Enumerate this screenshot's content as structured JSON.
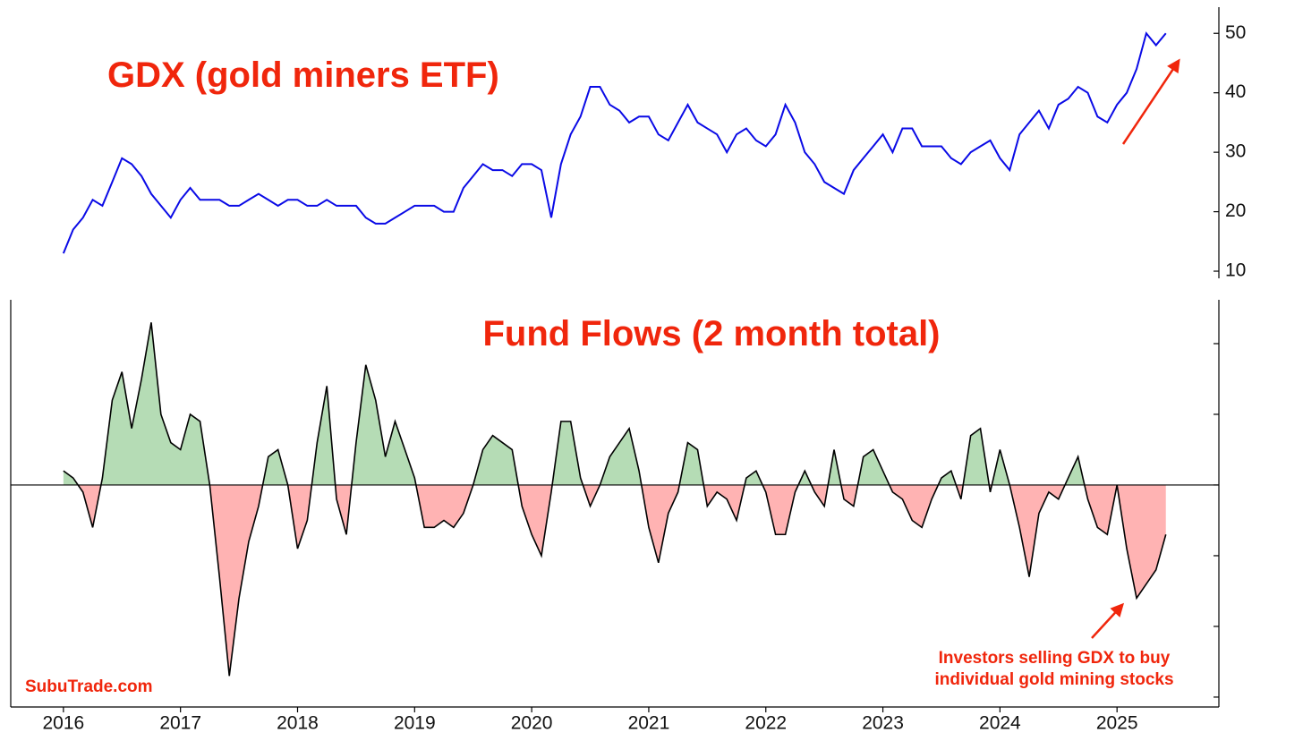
{
  "chart_data": [
    {
      "type": "line",
      "title": "GDX (gold miners ETF)",
      "color": "#0a0ae6",
      "axis_side": "right",
      "xlim": [
        2015.55,
        2025.87
      ],
      "ylim": [
        8.8,
        54.4
      ],
      "yticks": [
        10,
        20,
        30,
        40,
        50
      ],
      "x": [
        2016,
        2016.083,
        2016.167,
        2016.25,
        2016.333,
        2016.417,
        2016.5,
        2016.583,
        2016.667,
        2016.75,
        2016.833,
        2016.917,
        2017,
        2017.083,
        2017.167,
        2017.25,
        2017.333,
        2017.417,
        2017.5,
        2017.583,
        2017.667,
        2017.75,
        2017.833,
        2017.917,
        2018,
        2018.083,
        2018.167,
        2018.25,
        2018.333,
        2018.417,
        2018.5,
        2018.583,
        2018.667,
        2018.75,
        2018.833,
        2018.917,
        2019,
        2019.083,
        2019.167,
        2019.25,
        2019.333,
        2019.417,
        2019.5,
        2019.583,
        2019.667,
        2019.75,
        2019.833,
        2019.917,
        2020,
        2020.083,
        2020.167,
        2020.25,
        2020.333,
        2020.417,
        2020.5,
        2020.583,
        2020.667,
        2020.75,
        2020.833,
        2020.917,
        2021,
        2021.083,
        2021.167,
        2021.25,
        2021.333,
        2021.417,
        2021.5,
        2021.583,
        2021.667,
        2021.75,
        2021.833,
        2021.917,
        2022,
        2022.083,
        2022.167,
        2022.25,
        2022.333,
        2022.417,
        2022.5,
        2022.583,
        2022.667,
        2022.75,
        2022.833,
        2022.917,
        2023,
        2023.083,
        2023.167,
        2023.25,
        2023.333,
        2023.417,
        2023.5,
        2023.583,
        2023.667,
        2023.75,
        2023.833,
        2023.917,
        2024,
        2024.083,
        2024.167,
        2024.25,
        2024.333,
        2024.417,
        2024.5,
        2024.583,
        2024.667,
        2024.75,
        2024.833,
        2024.917,
        2025,
        2025.083,
        2025.167,
        2025.25,
        2025.333,
        2025.417
      ],
      "values": [
        13,
        17,
        19,
        22,
        21,
        25,
        29,
        28,
        26,
        23,
        21,
        19,
        22,
        24,
        22,
        22,
        22,
        21,
        21,
        22,
        23,
        22,
        21,
        22,
        22,
        21,
        21,
        22,
        21,
        21,
        21,
        19,
        18,
        18,
        19,
        20,
        21,
        21,
        21,
        20,
        20,
        24,
        26,
        28,
        27,
        27,
        26,
        28,
        28,
        27,
        19,
        28,
        33,
        36,
        41,
        41,
        38,
        37,
        35,
        36,
        36,
        33,
        32,
        35,
        38,
        35,
        34,
        33,
        30,
        33,
        34,
        32,
        31,
        33,
        38,
        35,
        30,
        28,
        25,
        24,
        23,
        27,
        29,
        31,
        33,
        30,
        34,
        34,
        31,
        31,
        31,
        29,
        28,
        30,
        31,
        32,
        29,
        27,
        33,
        35,
        37,
        34,
        38,
        39,
        41,
        40,
        36,
        35,
        38,
        40,
        44,
        50,
        48,
        50
      ]
    },
    {
      "type": "area",
      "title": "Fund Flows (2 month total)",
      "color": "#000000",
      "positive_color": "#b5dcb5",
      "negative_color": "#ffb3b3",
      "zero_line": true,
      "tick_labels": false,
      "xlim": [
        2015.55,
        2025.87
      ],
      "ylim": [
        -3.14,
        2.62
      ],
      "yticks": [
        -3,
        -2,
        -1,
        0,
        1,
        2
      ],
      "xticks": [
        2016,
        2017,
        2018,
        2019,
        2020,
        2021,
        2022,
        2023,
        2024,
        2025
      ],
      "x": [
        2016,
        2016.083,
        2016.167,
        2016.25,
        2016.333,
        2016.417,
        2016.5,
        2016.583,
        2016.667,
        2016.75,
        2016.833,
        2016.917,
        2017,
        2017.083,
        2017.167,
        2017.25,
        2017.333,
        2017.417,
        2017.5,
        2017.583,
        2017.667,
        2017.75,
        2017.833,
        2017.917,
        2018,
        2018.083,
        2018.167,
        2018.25,
        2018.333,
        2018.417,
        2018.5,
        2018.583,
        2018.667,
        2018.75,
        2018.833,
        2018.917,
        2019,
        2019.083,
        2019.167,
        2019.25,
        2019.333,
        2019.417,
        2019.5,
        2019.583,
        2019.667,
        2019.75,
        2019.833,
        2019.917,
        2020,
        2020.083,
        2020.167,
        2020.25,
        2020.333,
        2020.417,
        2020.5,
        2020.583,
        2020.667,
        2020.75,
        2020.833,
        2020.917,
        2021,
        2021.083,
        2021.167,
        2021.25,
        2021.333,
        2021.417,
        2021.5,
        2021.583,
        2021.667,
        2021.75,
        2021.833,
        2021.917,
        2022,
        2022.083,
        2022.167,
        2022.25,
        2022.333,
        2022.417,
        2022.5,
        2022.583,
        2022.667,
        2022.75,
        2022.833,
        2022.917,
        2023,
        2023.083,
        2023.167,
        2023.25,
        2023.333,
        2023.417,
        2023.5,
        2023.583,
        2023.667,
        2023.75,
        2023.833,
        2023.917,
        2024,
        2024.083,
        2024.167,
        2024.25,
        2024.333,
        2024.417,
        2024.5,
        2024.583,
        2024.667,
        2024.75,
        2024.833,
        2024.917,
        2025,
        2025.083,
        2025.167,
        2025.25,
        2025.333,
        2025.417
      ],
      "values": [
        0.2,
        0.1,
        -0.1,
        -0.6,
        0.1,
        1.2,
        1.6,
        0.8,
        1.5,
        2.3,
        1.0,
        0.6,
        0.5,
        1.0,
        0.9,
        0.0,
        -1.3,
        -2.7,
        -1.6,
        -0.8,
        -0.3,
        0.4,
        0.5,
        0.0,
        -0.9,
        -0.5,
        0.6,
        1.4,
        -0.2,
        -0.7,
        0.6,
        1.7,
        1.2,
        0.4,
        0.9,
        0.5,
        0.1,
        -0.6,
        -0.6,
        -0.5,
        -0.6,
        -0.4,
        0.0,
        0.5,
        0.7,
        0.6,
        0.5,
        -0.3,
        -0.7,
        -1.0,
        -0.1,
        0.9,
        0.9,
        0.1,
        -0.3,
        0.0,
        0.4,
        0.6,
        0.8,
        0.2,
        -0.6,
        -1.1,
        -0.4,
        -0.1,
        0.6,
        0.5,
        -0.3,
        -0.1,
        -0.2,
        -0.5,
        0.1,
        0.2,
        -0.1,
        -0.7,
        -0.7,
        -0.1,
        0.2,
        -0.1,
        -0.3,
        0.5,
        -0.2,
        -0.3,
        0.4,
        0.5,
        0.2,
        -0.1,
        -0.2,
        -0.5,
        -0.6,
        -0.2,
        0.1,
        0.2,
        -0.2,
        0.7,
        0.8,
        -0.1,
        0.5,
        0.0,
        -0.6,
        -1.3,
        -0.4,
        -0.1,
        -0.2,
        0.1,
        0.4,
        -0.2,
        -0.6,
        -0.7,
        0.0,
        -0.9,
        -1.6,
        -1.4,
        -1.2,
        -0.7
      ],
      "annotation": [
        "Investors selling GDX to buy",
        "individual gold mining stocks"
      ],
      "source": "SubuTrade.com"
    }
  ]
}
